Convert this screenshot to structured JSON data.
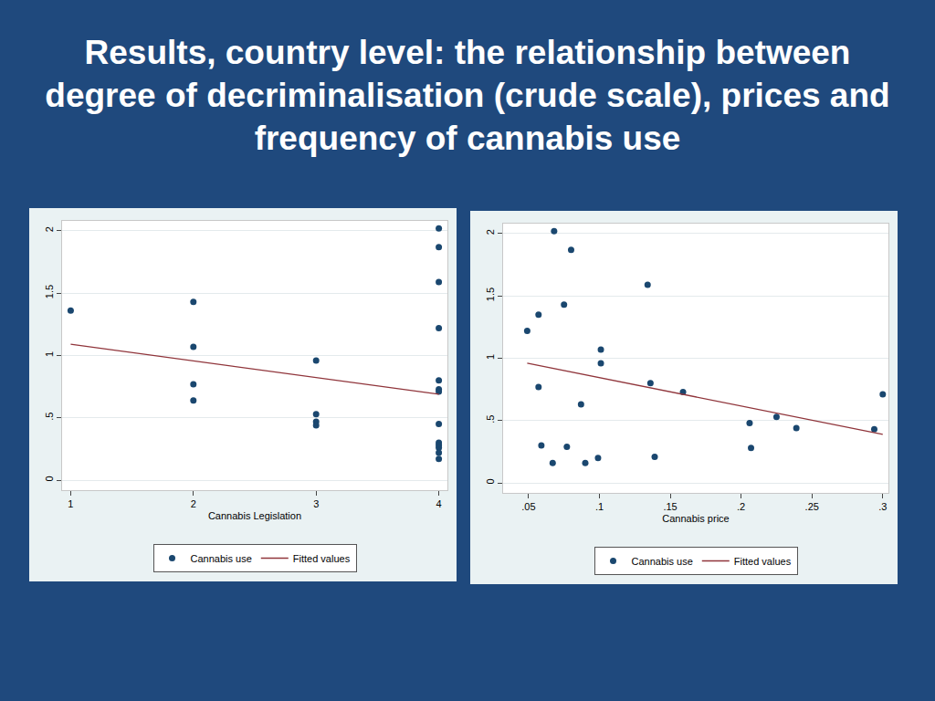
{
  "title": "Results, country level: the relationship between degree of decriminalisation (crude scale), prices and frequency of cannabis use",
  "chart_data": [
    {
      "type": "scatter",
      "x_label": "Cannabis Legislation",
      "xlim": [
        0.93,
        4.07
      ],
      "xticks": [
        1,
        2,
        3,
        4
      ],
      "ylim": [
        -0.08,
        2.08
      ],
      "yticks": [
        0,
        {
          "value": 0.5,
          "label": ".5"
        },
        1,
        1.5,
        2
      ],
      "grid": true,
      "legend": "bottom",
      "series": [
        {
          "name": "Cannabis use",
          "type": "scatter",
          "marker": "circle",
          "color": "#1a476f",
          "x": [
            1,
            2,
            2,
            2,
            2,
            3,
            3,
            3,
            3,
            4,
            4,
            4,
            4,
            4,
            4,
            4,
            4,
            4,
            4,
            4,
            4,
            4
          ],
          "values": [
            1.36,
            1.43,
            1.07,
            0.77,
            0.64,
            0.96,
            0.53,
            0.47,
            0.44,
            2.02,
            1.87,
            1.59,
            1.22,
            0.8,
            0.73,
            0.71,
            0.45,
            0.3,
            0.28,
            0.26,
            0.22,
            0.17
          ]
        },
        {
          "name": "Fitted values",
          "type": "line",
          "line_style": "solid",
          "color": "#90353b",
          "x": [
            1,
            4
          ],
          "values": [
            1.09,
            0.69
          ]
        }
      ]
    },
    {
      "type": "scatter",
      "x_label": "Cannabis price",
      "xlim": [
        0.032,
        0.304
      ],
      "xticks": [
        {
          "value": 0.05,
          "label": ".05"
        },
        {
          "value": 0.1,
          "label": ".1"
        },
        {
          "value": 0.15,
          "label": ".15"
        },
        {
          "value": 0.2,
          "label": ".2"
        },
        {
          "value": 0.25,
          "label": ".25"
        },
        {
          "value": 0.3,
          "label": ".3"
        }
      ],
      "ylim": [
        -0.08,
        2.08
      ],
      "yticks": [
        0,
        {
          "value": 0.5,
          "label": ".5"
        },
        1,
        1.5,
        2
      ],
      "grid": true,
      "legend": "bottom",
      "series": [
        {
          "name": "Cannabis use",
          "type": "scatter",
          "marker": "circle",
          "color": "#1a476f",
          "x": [
            0.049,
            0.057,
            0.057,
            0.059,
            0.068,
            0.067,
            0.075,
            0.077,
            0.08,
            0.087,
            0.09,
            0.099,
            0.101,
            0.101,
            0.134,
            0.136,
            0.139,
            0.159,
            0.206,
            0.207,
            0.225,
            0.239,
            0.294,
            0.3
          ],
          "values": [
            1.22,
            1.35,
            0.77,
            0.3,
            2.02,
            0.16,
            1.43,
            0.29,
            1.87,
            0.63,
            0.16,
            0.2,
            1.07,
            0.96,
            1.59,
            0.8,
            0.21,
            0.73,
            0.48,
            0.28,
            0.53,
            0.44,
            0.43,
            0.71
          ]
        },
        {
          "name": "Fitted values",
          "type": "line",
          "line_style": "solid",
          "color": "#90353b",
          "x": [
            0.049,
            0.3
          ],
          "values": [
            0.96,
            0.39
          ]
        }
      ]
    }
  ]
}
